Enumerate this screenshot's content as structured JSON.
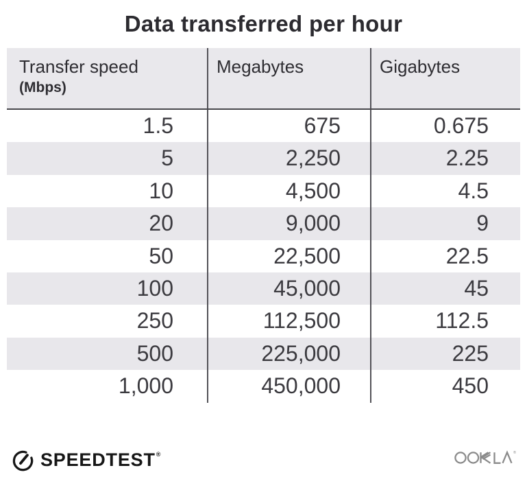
{
  "title": "Data transferred per hour",
  "table": {
    "columns": [
      {
        "label": "Transfer speed",
        "sublabel": "(Mbps)"
      },
      {
        "label": "Megabytes"
      },
      {
        "label": "Gigabytes"
      }
    ],
    "rows": [
      [
        "1.5",
        "675",
        "0.675"
      ],
      [
        "5",
        "2,250",
        "2.25"
      ],
      [
        "10",
        "4,500",
        "4.5"
      ],
      [
        "20",
        "9,000",
        "9"
      ],
      [
        "50",
        "22,500",
        "22.5"
      ],
      [
        "100",
        "45,000",
        "45"
      ],
      [
        "250",
        "112,500",
        "112.5"
      ],
      [
        "500",
        "225,000",
        "225"
      ],
      [
        "1,000",
        "450,000",
        "450"
      ]
    ]
  },
  "footer": {
    "speedtest_label": "SPEEDTEST",
    "speedtest_trademark": "®",
    "ookla_label": "OOKLA",
    "ookla_trademark": "®"
  },
  "colors": {
    "header_background": "#e9e8ec",
    "zebra_row_background": "#e8e7eb",
    "text_dark": "#2e2d32",
    "number_text": "#3b3a3f",
    "divider": "#525157",
    "speedtest_black": "#161616",
    "ookla_gray": "#8b8b8b"
  },
  "chart_data": {
    "type": "table",
    "title": "Data transferred per hour",
    "columns": [
      "Transfer speed (Mbps)",
      "Megabytes",
      "Gigabytes"
    ],
    "rows": [
      [
        1.5,
        675,
        0.675
      ],
      [
        5,
        2250,
        2.25
      ],
      [
        10,
        4500,
        4.5
      ],
      [
        20,
        9000,
        9
      ],
      [
        50,
        22500,
        22.5
      ],
      [
        100,
        45000,
        45
      ],
      [
        250,
        112500,
        112.5
      ],
      [
        500,
        225000,
        225
      ],
      [
        1000,
        450000,
        450
      ]
    ],
    "layout_hints": {
      "zebra_striping": true,
      "numbers_right_aligned": true,
      "column_dividers": true
    }
  }
}
